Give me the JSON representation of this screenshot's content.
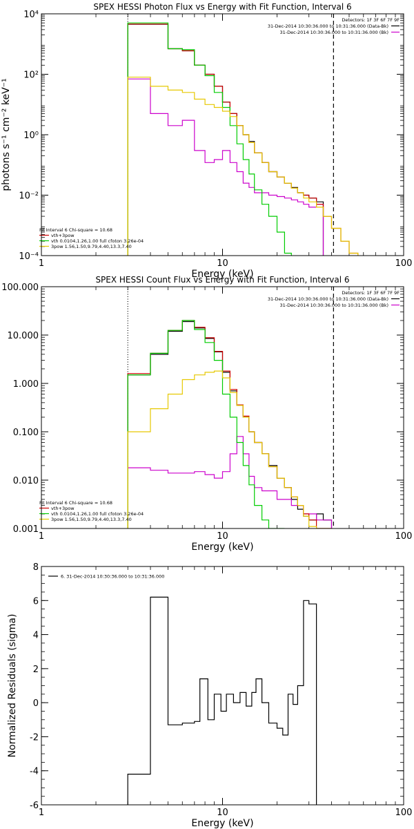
{
  "chart_data": [
    {
      "type": "line",
      "title": "SPEX HESSI Photon Flux vs Energy with Fit Function, Interval 6",
      "xlabel": "Energy (keV)",
      "ylabel": "photons s⁻¹ cm⁻² keV⁻¹",
      "x_scale": "log",
      "y_scale": "log",
      "xlim": [
        1,
        100
      ],
      "ylim": [
        0.0001,
        10000
      ],
      "x_ticks": [
        1,
        10,
        100
      ],
      "x_tick_labels": [
        "1",
        "10",
        "100"
      ],
      "y_ticks": [
        0.0001,
        0.01,
        1,
        100,
        10000
      ],
      "y_tick_labels": [
        "10⁻⁴",
        "10⁻²",
        "10⁰",
        "10²",
        "10⁴"
      ],
      "legend_top": [
        "Detectors: 1F 3F 6F 7F 9F",
        "31-Dec-2014 10:30:36.000 to 10:31:36.000 (Data-Bk)",
        "31-Dec-2014 10:30:36.000 to 10:31:36.000 (Bk)"
      ],
      "legend_bottom": [
        "Fit Interval 6   Chi-square = 10.68",
        "vth+3pow",
        "vth 0.0104,1.26,1.00  full cfoton 3.26e-04",
        "3pow 1.56,1.50,9.79,4.40,13.3,7.40"
      ],
      "legend_top_colors": [
        "#000000",
        "#000000",
        "#cc00cc"
      ],
      "legend_bottom_colors": [
        "#000000",
        "#cc0000",
        "#00cc00",
        "#e6c800"
      ],
      "vlines": [
        {
          "x": 3.0,
          "style": "dotted",
          "color": "#000000"
        },
        {
          "x": 41.0,
          "style": "dashed",
          "color": "#000000"
        }
      ],
      "bin_edges": [
        3.0,
        4.0,
        5.0,
        6.0,
        7.0,
        8.0,
        9.0,
        10.0,
        11.0,
        12.0,
        13.0,
        14.0,
        15.0,
        16.5,
        18.0,
        20.0,
        22.0,
        24.0,
        26.0,
        28.0,
        30.0,
        33.0,
        36.0,
        40.0,
        45.0,
        50.0,
        56.0
      ],
      "series": [
        {
          "name": "Data-Bk",
          "color": "#000000",
          "values": [
            4500,
            4500,
            700,
            600,
            200,
            100,
            40,
            12,
            5,
            2.0,
            1.0,
            0.6,
            0.25,
            0.12,
            0.06,
            0.04,
            0.025,
            0.018,
            0.012,
            0.01,
            0.008,
            0.006
          ]
        },
        {
          "name": "Bk",
          "color": "#cc00cc",
          "values": [
            70,
            5,
            2,
            3,
            0.3,
            0.12,
            0.15,
            0.3,
            0.12,
            0.06,
            0.025,
            0.018,
            0.012,
            0.012,
            0.01,
            0.009,
            0.008,
            0.007,
            0.006,
            0.005,
            0.004,
            0.005
          ]
        },
        {
          "name": "vth+3pow",
          "color": "#cc0000",
          "values": [
            4600,
            4600,
            700,
            600,
            200,
            100,
            40,
            12,
            5,
            2.0,
            1.0,
            0.55,
            0.25,
            0.12,
            0.06,
            0.04,
            0.025,
            0.017,
            0.012,
            0.01,
            0.008,
            0.005,
            0.002,
            0.0008,
            0.0003,
            0.00012
          ]
        },
        {
          "name": "vth",
          "color": "#00cc00",
          "values": [
            5000,
            5000,
            700,
            650,
            200,
            90,
            25,
            8,
            2,
            0.5,
            0.15,
            0.05,
            0.015,
            0.005,
            0.002,
            0.0006,
            0.00012
          ]
        },
        {
          "name": "3pow",
          "color": "#e6c800",
          "values": [
            80,
            40,
            30,
            25,
            15,
            10,
            8,
            6,
            4,
            2.0,
            1.0,
            0.55,
            0.25,
            0.12,
            0.06,
            0.04,
            0.025,
            0.017,
            0.012,
            0.008,
            0.006,
            0.004,
            0.002,
            0.0008,
            0.0003,
            0.00012
          ]
        }
      ]
    },
    {
      "type": "line",
      "title": "SPEX HESSI Count Flux vs Energy with Fit Function, Interval 6",
      "xlabel": "Energy (keV)",
      "ylabel": "",
      "x_scale": "log",
      "y_scale": "log",
      "xlim": [
        1,
        100
      ],
      "ylim": [
        0.001,
        100
      ],
      "x_ticks": [
        1,
        10,
        100
      ],
      "x_tick_labels": [
        "1",
        "10",
        "100"
      ],
      "y_ticks": [
        0.001,
        0.01,
        0.1,
        1,
        10,
        100
      ],
      "y_tick_labels": [
        "0.001",
        "0.010",
        "0.100",
        "1.000",
        "10.000",
        "100.000"
      ],
      "legend_top": [
        "Detectors: 1F 3F 6F 7F 9F",
        "31-Dec-2014 10:30:36.000 to 10:31:36.000 (Data-Bk)",
        "31-Dec-2014 10:30:36.000 to 10:31:36.000 (Bk)"
      ],
      "legend_bottom": [
        "Fit Interval 6   Chi-square = 10.68",
        "vth+3pow",
        "vth 0.0104,1.26,1.00  full cfoton 3.26e-04",
        "3pow 1.56,1.50,9.79,4.40,13.3,7.40"
      ],
      "legend_top_colors": [
        "#000000",
        "#000000",
        "#cc00cc"
      ],
      "legend_bottom_colors": [
        "#000000",
        "#cc0000",
        "#00cc00",
        "#e6c800"
      ],
      "vlines": [
        {
          "x": 3.0,
          "style": "dotted",
          "color": "#000000"
        },
        {
          "x": 41.0,
          "style": "dashed",
          "color": "#000000"
        }
      ],
      "bin_edges": [
        3.0,
        4.0,
        5.0,
        6.0,
        7.0,
        8.0,
        9.0,
        10.0,
        11.0,
        12.0,
        13.0,
        14.0,
        15.0,
        16.5,
        18.0,
        20.0,
        22.0,
        24.0,
        26.0,
        28.0,
        30.0,
        33.0,
        36.0,
        40.0
      ],
      "series": [
        {
          "name": "Data-Bk",
          "color": "#000000",
          "values": [
            1.5,
            4,
            12,
            19,
            14,
            8.5,
            4.5,
            1.7,
            0.7,
            0.35,
            0.2,
            0.1,
            0.06,
            0.035,
            0.02,
            0.011,
            0.007,
            0.004,
            0.0025,
            0.0018,
            0.0015,
            0.002,
            0.0015
          ]
        },
        {
          "name": "Bk",
          "color": "#cc00cc",
          "values": [
            0.018,
            0.016,
            0.014,
            0.014,
            0.015,
            0.013,
            0.011,
            0.015,
            0.035,
            0.08,
            0.035,
            0.012,
            0.007,
            0.006,
            0.006,
            0.004,
            0.004,
            0.003,
            0.003,
            0.002,
            0.002,
            0.0015,
            0.0015
          ]
        },
        {
          "name": "vth+3pow",
          "color": "#cc0000",
          "values": [
            1.6,
            4.2,
            12.5,
            20,
            14.5,
            8.8,
            4.6,
            1.8,
            0.75,
            0.36,
            0.21,
            0.1,
            0.06,
            0.035,
            0.019,
            0.011,
            0.007,
            0.0045,
            0.003,
            0.002,
            0.0015,
            0.001,
            0.001
          ]
        },
        {
          "name": "vth",
          "color": "#00cc00",
          "values": [
            1.5,
            4.2,
            12.5,
            20,
            13,
            7,
            3,
            0.6,
            0.2,
            0.06,
            0.02,
            0.008,
            0.003,
            0.0015,
            0.001,
            0.001
          ]
        },
        {
          "name": "3pow",
          "color": "#e6c800",
          "values": [
            0.1,
            0.3,
            0.6,
            1.2,
            1.5,
            1.7,
            1.8,
            1.3,
            0.65,
            0.35,
            0.2,
            0.1,
            0.06,
            0.035,
            0.019,
            0.011,
            0.007,
            0.0045,
            0.003,
            0.0018,
            0.0011,
            0.001,
            0.001
          ]
        }
      ]
    },
    {
      "type": "line",
      "title": "",
      "xlabel": "Energy (keV)",
      "ylabel": "Normalized Residuals (sigma)",
      "x_scale": "log",
      "y_scale": "linear",
      "xlim": [
        1,
        100
      ],
      "ylim": [
        -6,
        8
      ],
      "x_ticks": [
        1,
        10,
        100
      ],
      "x_tick_labels": [
        "1",
        "10",
        "100"
      ],
      "y_ticks": [
        -6,
        -4,
        -2,
        0,
        2,
        4,
        6,
        8
      ],
      "y_tick_labels": [
        "-6",
        "-4",
        "-2",
        "0",
        "2",
        "4",
        "6",
        "8"
      ],
      "legend_top_left": "6. 31-Dec-2014 10:30:36.000 to 10:31:36.000",
      "bin_edges": [
        3.0,
        4.0,
        5.0,
        6.0,
        7.0,
        7.5,
        8.3,
        9.0,
        9.8,
        10.5,
        11.5,
        12.5,
        13.5,
        14.5,
        15.3,
        16.5,
        18.0,
        20.0,
        21.5,
        23.0,
        24.5,
        26.0,
        28.0,
        30.0,
        33.0,
        36.0,
        40.0
      ],
      "series": [
        {
          "name": "residuals",
          "color": "#000000",
          "values": [
            -4.2,
            6.2,
            -1.3,
            -1.2,
            -1.1,
            1.4,
            -1.0,
            0.5,
            -0.5,
            0.5,
            0.0,
            0.6,
            -0.2,
            0.6,
            1.4,
            0.0,
            -1.2,
            -1.5,
            -1.9,
            0.5,
            -0.1,
            1.0,
            6.0,
            5.8
          ]
        }
      ]
    }
  ]
}
